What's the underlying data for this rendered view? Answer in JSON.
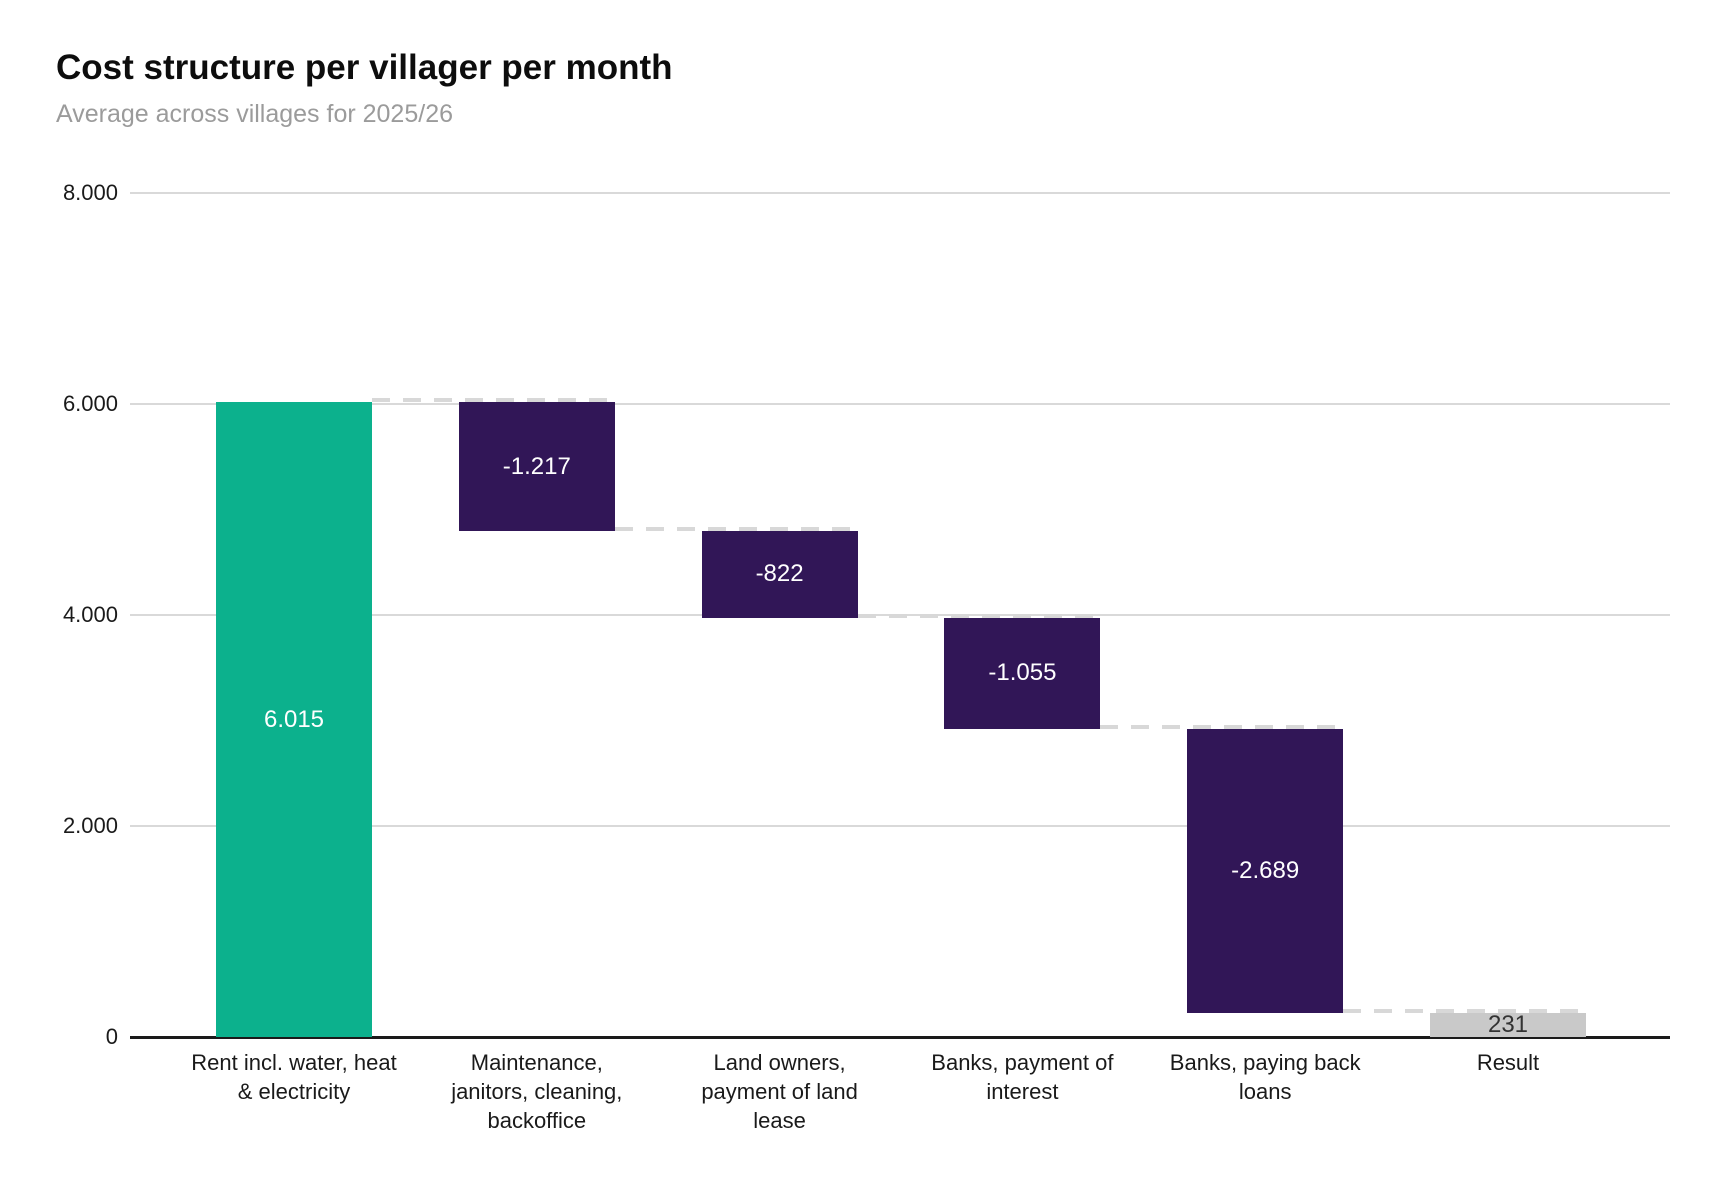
{
  "page": {
    "background": "#ffffff"
  },
  "chart_data": {
    "type": "waterfall",
    "title": "Cost structure per villager per month",
    "subtitle": "Average across villages for 2025/26",
    "legend": "none",
    "grid": true,
    "y_axis": {
      "min": 0,
      "max": 8000,
      "ticks": [
        {
          "value": 8000,
          "label": "8.000"
        },
        {
          "value": 6000,
          "label": "6.000"
        },
        {
          "value": 4000,
          "label": "4.000"
        },
        {
          "value": 2000,
          "label": "2.000"
        },
        {
          "value": 0,
          "label": "0"
        }
      ]
    },
    "bars": [
      {
        "category": "Rent incl. water, heat & electricity",
        "category_lines": [
          "Rent incl. water, heat",
          "& electricity"
        ],
        "value": 6015,
        "value_label": "6.015",
        "role": "increase",
        "start": 0,
        "end": 6015
      },
      {
        "category": "Maintenance, janitors, cleaning, backoffice",
        "category_lines": [
          "Maintenance,",
          "janitors, cleaning,",
          "backoffice"
        ],
        "value": -1217,
        "value_label": "-1.217",
        "role": "decrease",
        "start": 6015,
        "end": 4798
      },
      {
        "category": "Land owners, payment of land lease",
        "category_lines": [
          "Land owners,",
          "payment of land",
          "lease"
        ],
        "value": -822,
        "value_label": "-822",
        "role": "decrease",
        "start": 4798,
        "end": 3976
      },
      {
        "category": "Banks, payment of interest",
        "category_lines": [
          "Banks, payment of",
          "interest"
        ],
        "value": -1055,
        "value_label": "-1.055",
        "role": "decrease",
        "start": 3976,
        "end": 2921
      },
      {
        "category": "Banks, paying back loans",
        "category_lines": [
          "Banks, paying back",
          "loans"
        ],
        "value": -2689,
        "value_label": "-2.689",
        "role": "decrease",
        "start": 2921,
        "end": 232
      },
      {
        "category": "Result",
        "category_lines": [
          "Result"
        ],
        "value": 231,
        "value_label": "231",
        "role": "total",
        "start": 0,
        "end": 231
      }
    ],
    "colors": {
      "increase": "#0cb18d",
      "decrease": "#311657",
      "total": "#c9c9c9",
      "connector": "#d8d8d8",
      "gridline": "#d9d9d9",
      "axis_line": "#1a1a1a",
      "value_label_on_bar": "#ffffff",
      "value_label_on_total": "#333333",
      "tick_label": "#1a1a1a",
      "title": "#0d0d0d",
      "subtitle": "#9b9b9b"
    }
  }
}
